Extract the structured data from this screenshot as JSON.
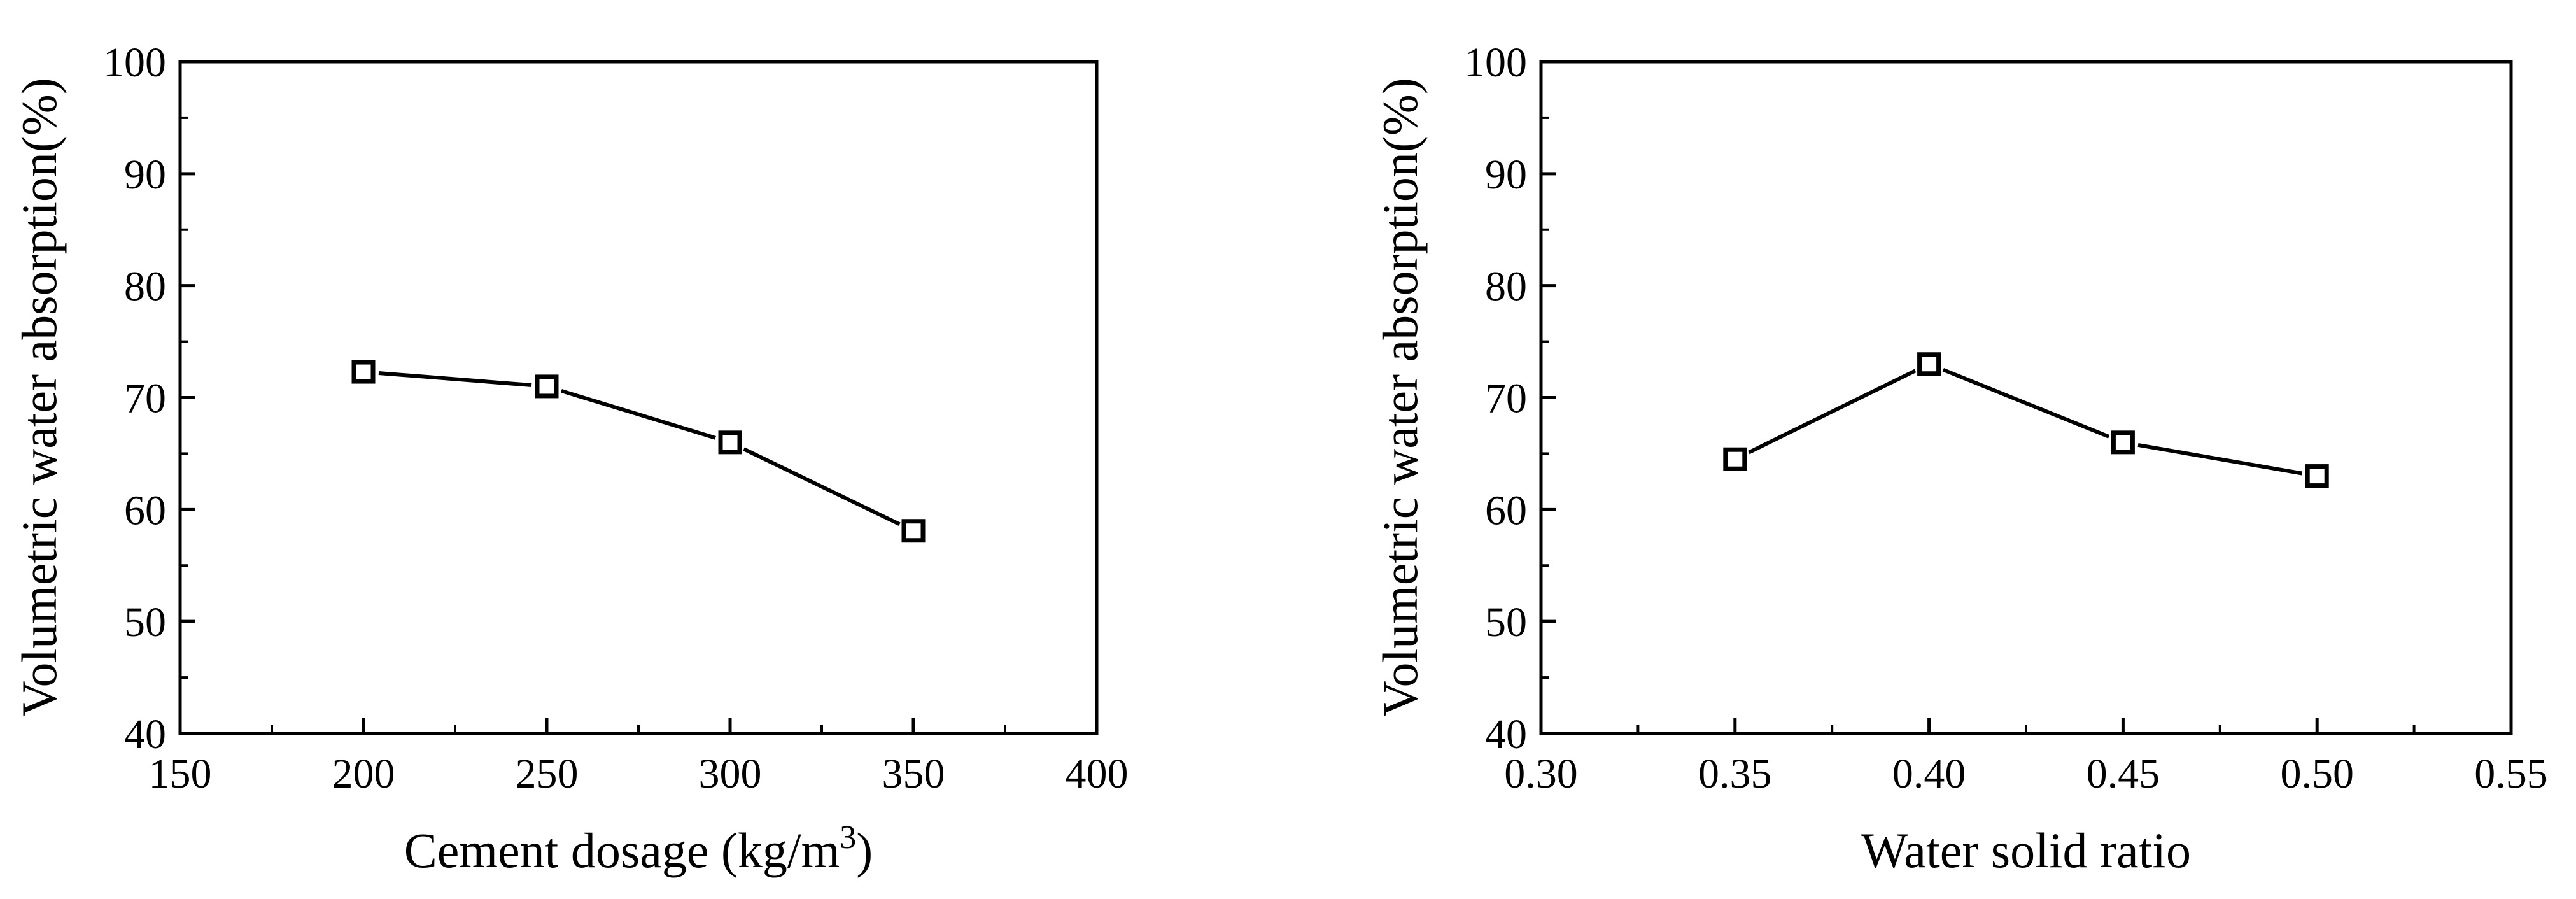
{
  "chart_data": [
    {
      "type": "line",
      "title": "",
      "xlabel": "Cement dosage (kg/m",
      "xlabel_sup": "3",
      "xlabel_close": ")",
      "ylabel": "Volumetric water absorption(%)",
      "xlim": [
        150,
        400
      ],
      "ylim": [
        40,
        100
      ],
      "xticks": [
        150,
        200,
        250,
        300,
        350,
        400
      ],
      "xtick_labels": [
        "150",
        "200",
        "250",
        "300",
        "350",
        "400"
      ],
      "yticks": [
        40,
        50,
        60,
        70,
        80,
        90,
        100
      ],
      "ytick_labels": [
        "40",
        "50",
        "60",
        "70",
        "80",
        "90",
        "100"
      ],
      "grid": false,
      "marker": "hollow-square",
      "line_color": "#000000",
      "series": [
        {
          "x": [
            200,
            250,
            300,
            350
          ],
          "y": [
            72.3,
            71.0,
            66.0,
            58.1
          ]
        }
      ]
    },
    {
      "type": "line",
      "title": "",
      "xlabel": "Water solid ratio",
      "ylabel": "Volumetric water absorption(%)",
      "xlim": [
        0.3,
        0.55
      ],
      "ylim": [
        40,
        100
      ],
      "xticks": [
        0.3,
        0.35,
        0.4,
        0.45,
        0.5,
        0.55
      ],
      "xtick_labels": [
        "0.30",
        "0.35",
        "0.40",
        "0.45",
        "0.50",
        "0.55"
      ],
      "yticks": [
        40,
        50,
        60,
        70,
        80,
        90,
        100
      ],
      "ytick_labels": [
        "40",
        "50",
        "60",
        "70",
        "80",
        "90",
        "100"
      ],
      "grid": false,
      "marker": "hollow-square",
      "line_color": "#000000",
      "series": [
        {
          "x": [
            0.35,
            0.4,
            0.45,
            0.5
          ],
          "y": [
            64.5,
            73.0,
            66.0,
            63.0
          ]
        }
      ]
    }
  ]
}
